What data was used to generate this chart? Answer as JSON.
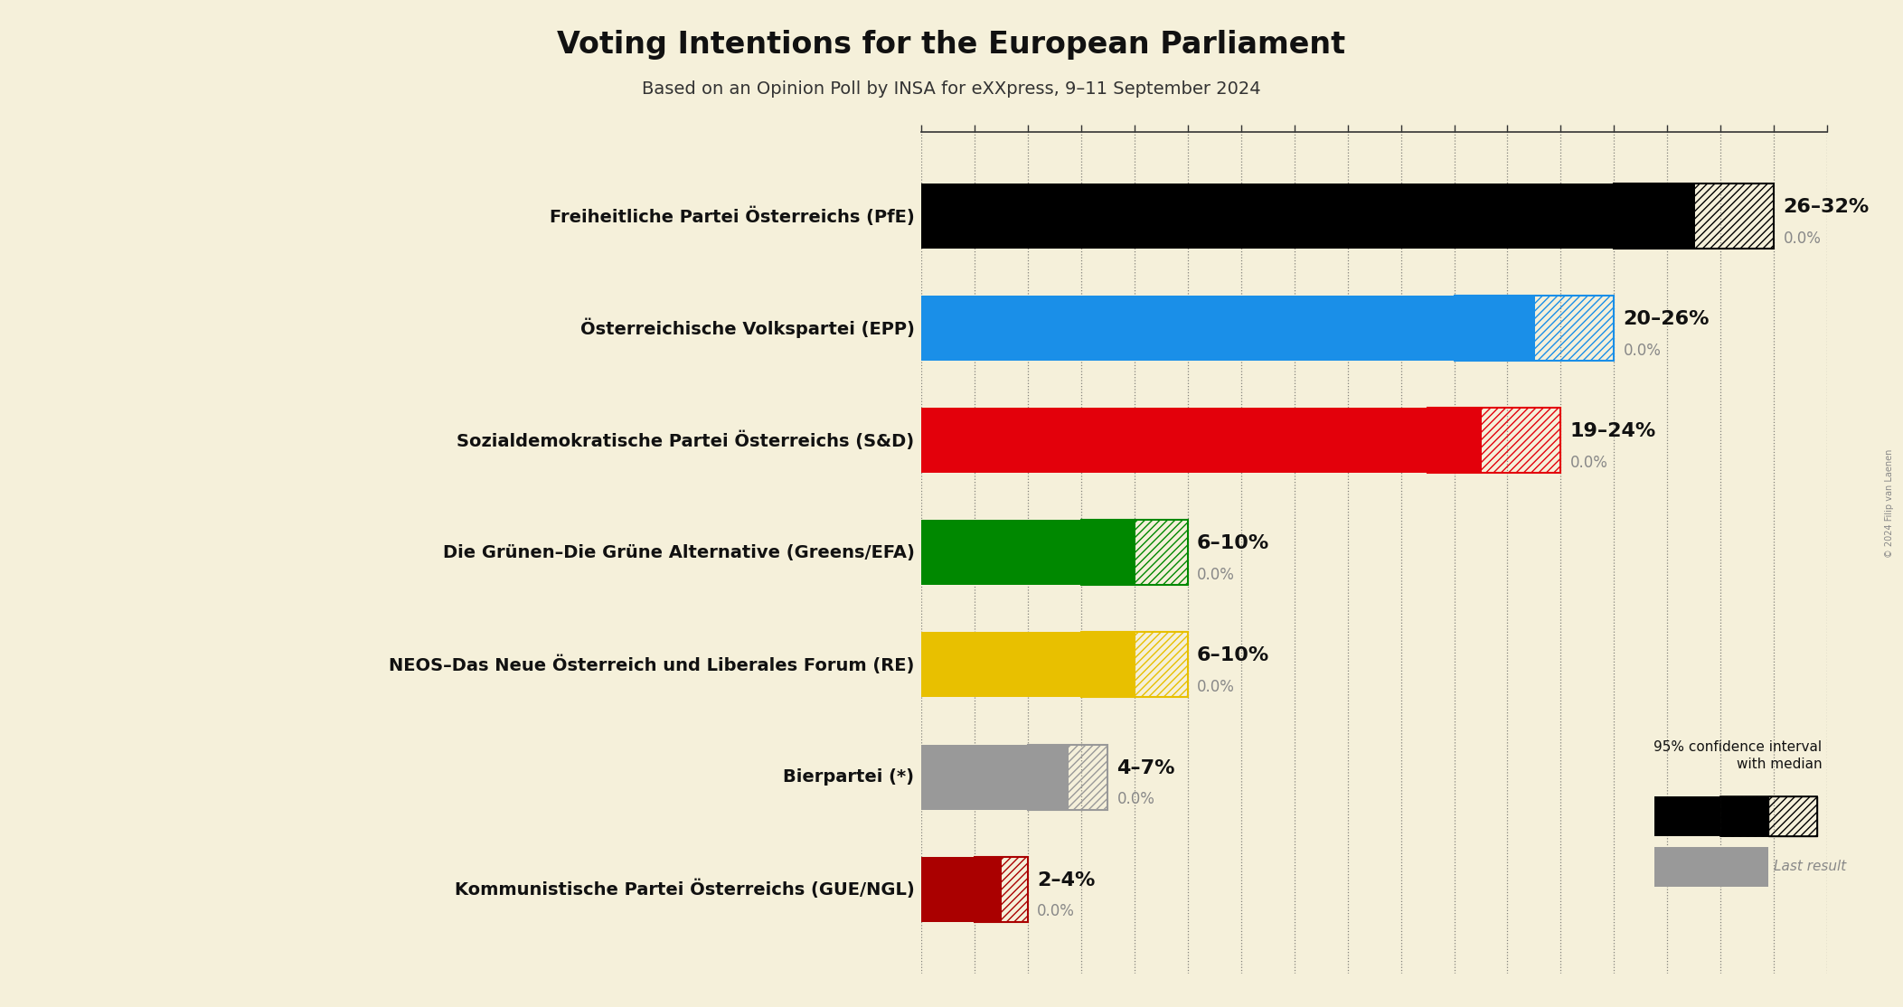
{
  "title": "Voting Intentions for the European Parliament",
  "subtitle": "Based on an Opinion Poll by INSA for eXXpress, 9–11 September 2024",
  "copyright": "© 2024 Filip van Laenen",
  "background_color": "#f5f0da",
  "parties": [
    {
      "name": "Freiheitliche Partei Österreichs (PfE)",
      "low": 26,
      "high": 32,
      "median": 29,
      "last": 0.0,
      "color": "#000000",
      "range_label": "26–32%",
      "last_label": "0.0%"
    },
    {
      "name": "Österreichische Volkspartei (EPP)",
      "low": 20,
      "high": 26,
      "median": 23,
      "last": 0.0,
      "color": "#1A8FE8",
      "range_label": "20–26%",
      "last_label": "0.0%"
    },
    {
      "name": "Sozialdemokratische Partei Österreichs (S&D)",
      "low": 19,
      "high": 24,
      "median": 21,
      "last": 0.0,
      "color": "#E3000B",
      "range_label": "19–24%",
      "last_label": "0.0%"
    },
    {
      "name": "Die Grünen–Die Grüne Alternative (Greens/EFA)",
      "low": 6,
      "high": 10,
      "median": 8,
      "last": 0.0,
      "color": "#008800",
      "range_label": "6–10%",
      "last_label": "0.0%"
    },
    {
      "name": "NEOS–Das Neue Österreich und Liberales Forum (RE)",
      "low": 6,
      "high": 10,
      "median": 8,
      "last": 0.0,
      "color": "#E8C000",
      "range_label": "6–10%",
      "last_label": "0.0%"
    },
    {
      "name": "Bierpartei (*)",
      "low": 4,
      "high": 7,
      "median": 5.5,
      "last": 0.0,
      "color": "#999999",
      "range_label": "4–7%",
      "last_label": "0.0%"
    },
    {
      "name": "Kommunistische Partei Österreichs (GUE/NGL)",
      "low": 2,
      "high": 4,
      "median": 3,
      "last": 0.0,
      "color": "#AA0000",
      "range_label": "2–4%",
      "last_label": "0.0%"
    }
  ],
  "xlim_max": 34,
  "tick_interval": 2,
  "bar_height": 0.58,
  "label_fontsize": 14,
  "range_fontsize": 16,
  "last_fontsize": 12,
  "title_fontsize": 24,
  "subtitle_fontsize": 14
}
